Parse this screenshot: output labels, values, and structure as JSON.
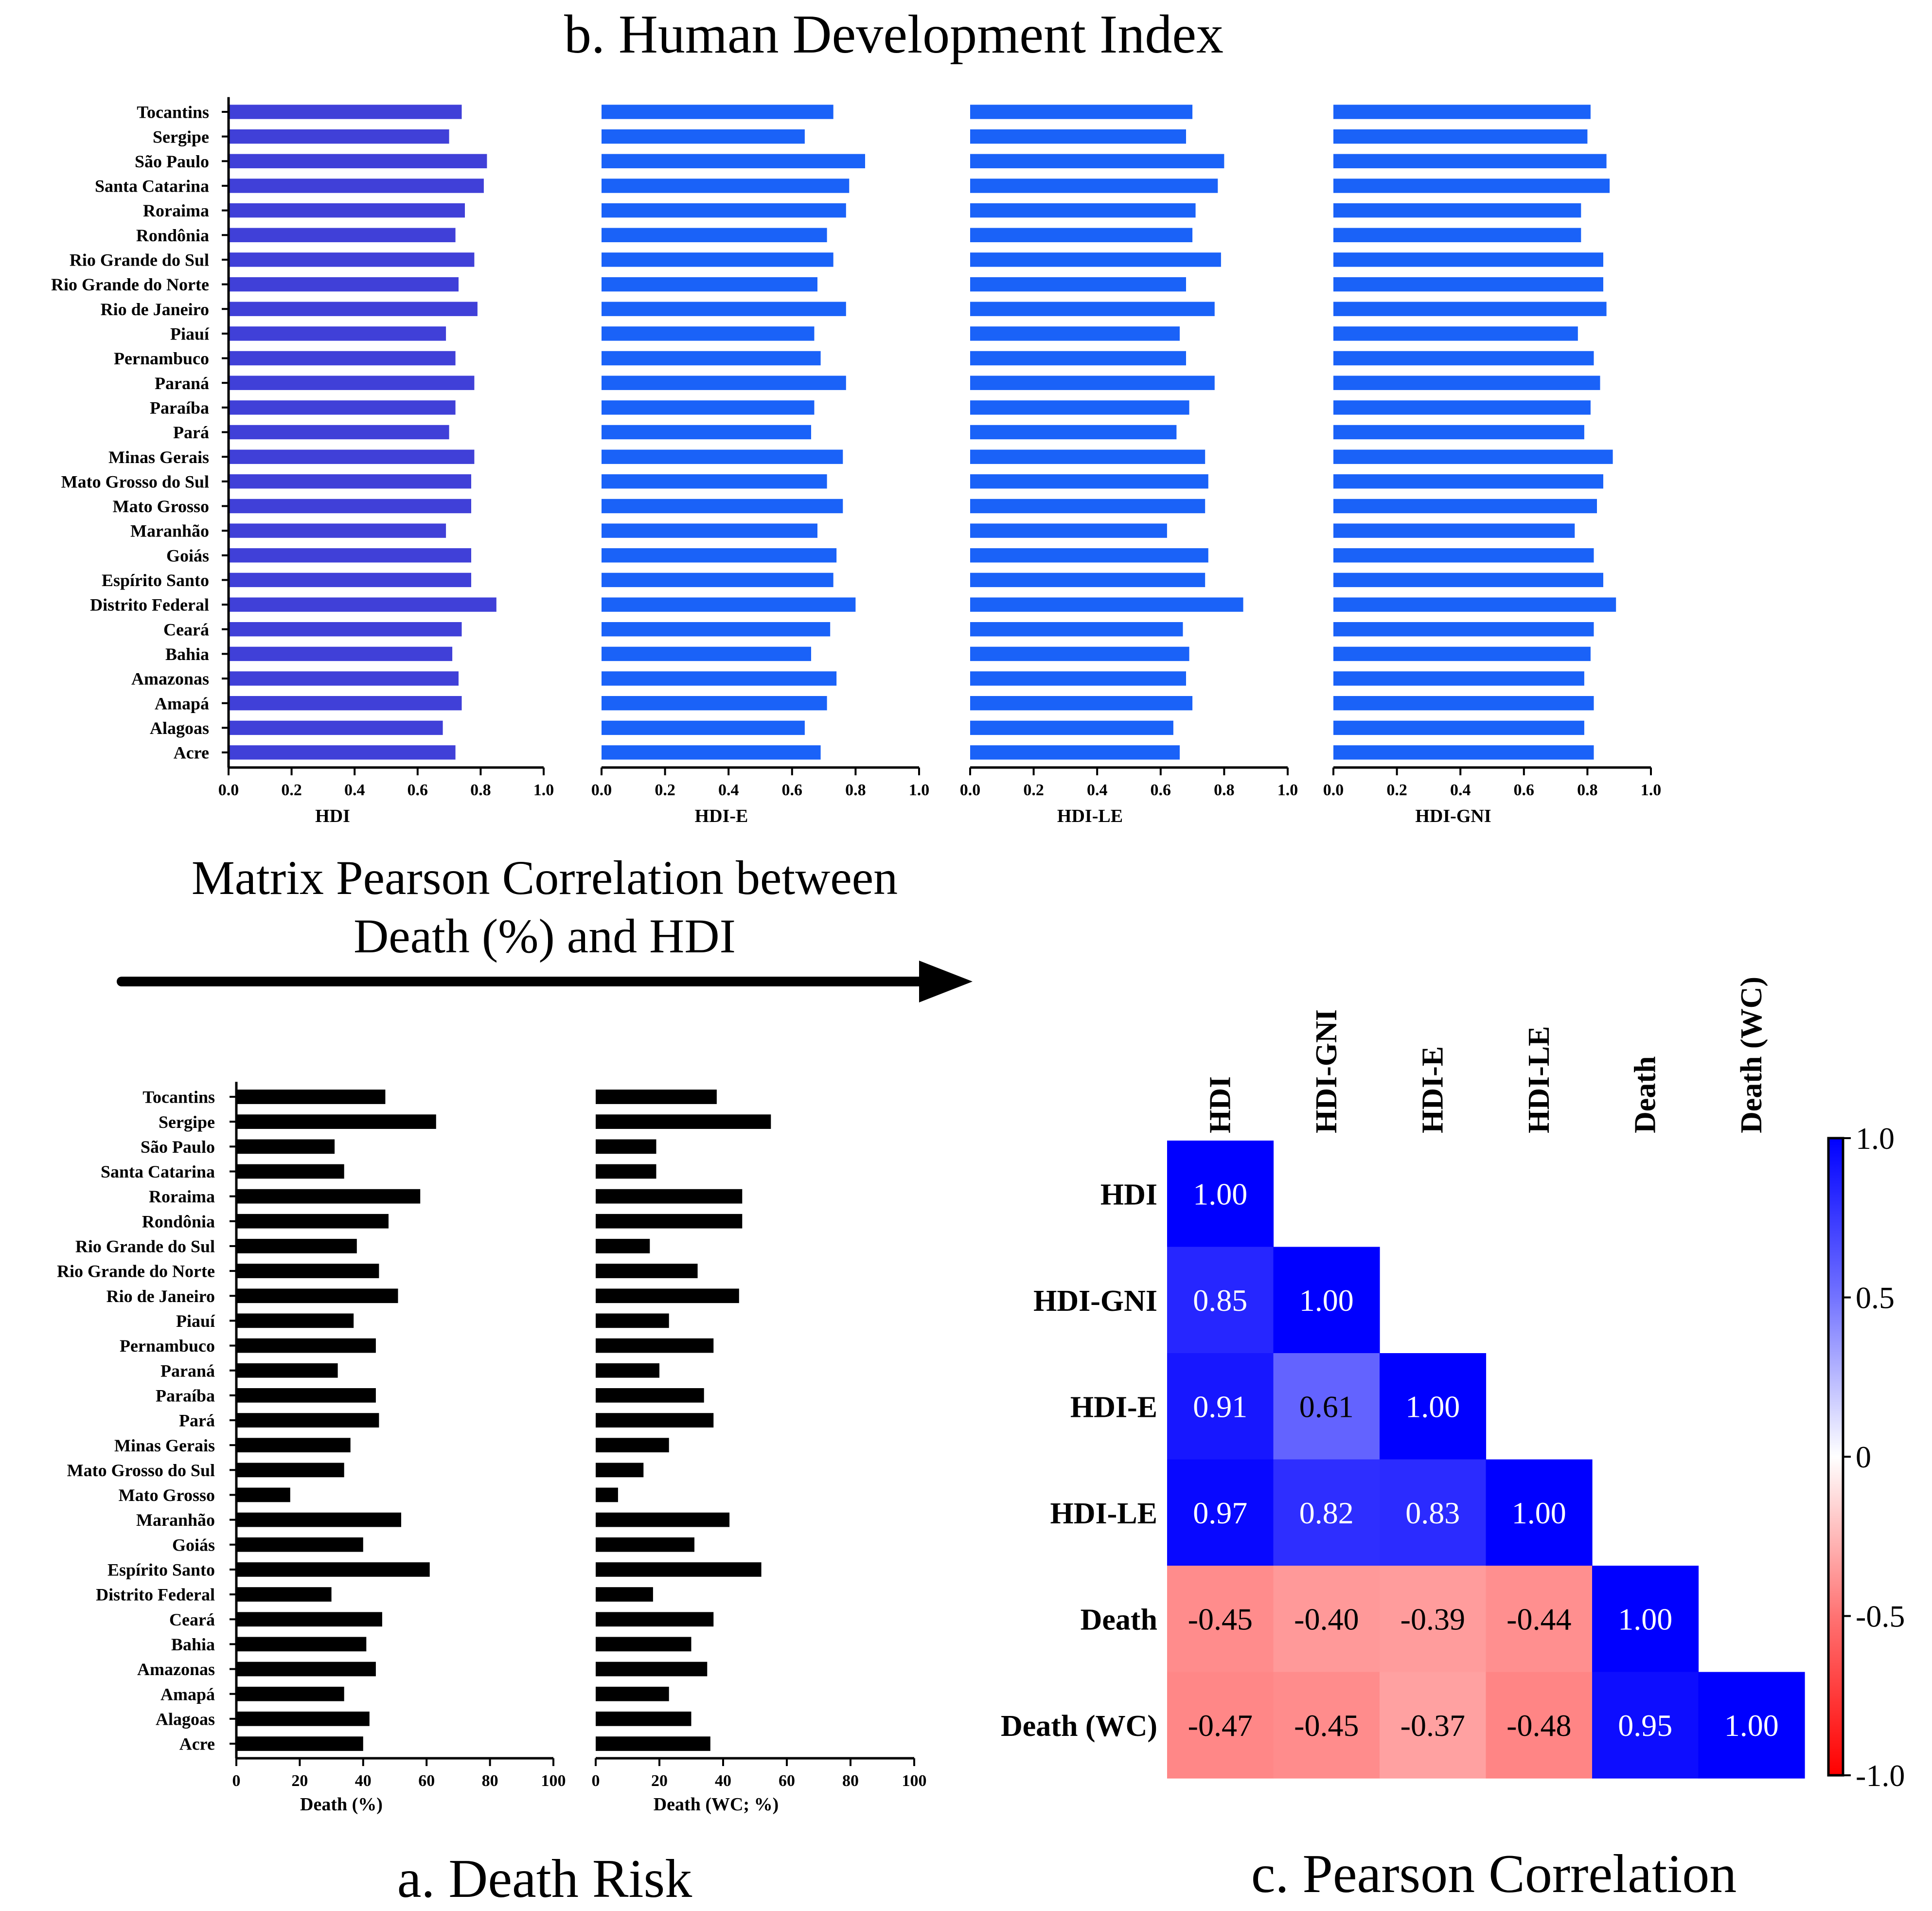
{
  "titles": {
    "top": "b. Human Development Index",
    "middle_line1": "Matrix Pearson Correlation between",
    "middle_line2": "Death (%) and HDI",
    "bottom_left": "a. Death Risk",
    "bottom_right": "c. Pearson Correlation"
  },
  "colors": {
    "hdi_bar": "#4040D8",
    "hdi_component_bar": "#1A62F8",
    "death_bar": "#000000",
    "heat_positive": "#0000FF",
    "heat_negative": "#FF0000"
  },
  "chart_data": [
    {
      "type": "bar",
      "orientation": "horizontal",
      "panel": "b",
      "xlabel": "HDI",
      "xlim": [
        0,
        1.0
      ],
      "xticks": [
        "0.0",
        "0.2",
        "0.4",
        "0.6",
        "0.8",
        "1.0"
      ],
      "categories": [
        "Tocantins",
        "Sergipe",
        "São Paulo",
        "Santa Catarina",
        "Roraima",
        "Rondônia",
        "Rio Grande do Sul",
        "Rio Grande do Norte",
        "Rio de Janeiro",
        "Piauí",
        "Pernambuco",
        "Paraná",
        "Paraíba",
        "Pará",
        "Minas Gerais",
        "Mato Grosso do Sul",
        "Mato Grosso",
        "Maranhão",
        "Goiás",
        "Espírito Santo",
        "Distrito Federal",
        "Ceará",
        "Bahia",
        "Amazonas",
        "Amapá",
        "Alagoas",
        "Acre"
      ],
      "values": [
        0.74,
        0.7,
        0.82,
        0.81,
        0.75,
        0.72,
        0.78,
        0.73,
        0.79,
        0.69,
        0.72,
        0.78,
        0.72,
        0.7,
        0.78,
        0.77,
        0.77,
        0.69,
        0.77,
        0.77,
        0.85,
        0.74,
        0.71,
        0.73,
        0.74,
        0.68,
        0.72
      ]
    },
    {
      "type": "bar",
      "orientation": "horizontal",
      "panel": "b",
      "xlabel": "HDI-E",
      "xlim": [
        0,
        1.0
      ],
      "xticks": [
        "0.0",
        "0.2",
        "0.4",
        "0.6",
        "0.8",
        "1.0"
      ],
      "categories": [
        "Tocantins",
        "Sergipe",
        "São Paulo",
        "Santa Catarina",
        "Roraima",
        "Rondônia",
        "Rio Grande do Sul",
        "Rio Grande do Norte",
        "Rio de Janeiro",
        "Piauí",
        "Pernambuco",
        "Paraná",
        "Paraíba",
        "Pará",
        "Minas Gerais",
        "Mato Grosso do Sul",
        "Mato Grosso",
        "Maranhão",
        "Goiás",
        "Espírito Santo",
        "Distrito Federal",
        "Ceará",
        "Bahia",
        "Amazonas",
        "Amapá",
        "Alagoas",
        "Acre"
      ],
      "values": [
        0.73,
        0.64,
        0.83,
        0.78,
        0.77,
        0.71,
        0.73,
        0.68,
        0.77,
        0.67,
        0.69,
        0.77,
        0.67,
        0.66,
        0.76,
        0.71,
        0.76,
        0.68,
        0.74,
        0.73,
        0.8,
        0.72,
        0.66,
        0.74,
        0.71,
        0.64,
        0.69
      ]
    },
    {
      "type": "bar",
      "orientation": "horizontal",
      "panel": "b",
      "xlabel": "HDI-LE",
      "xlim": [
        0,
        1.0
      ],
      "xticks": [
        "0.0",
        "0.2",
        "0.4",
        "0.6",
        "0.8",
        "1.0"
      ],
      "categories": [
        "Tocantins",
        "Sergipe",
        "São Paulo",
        "Santa Catarina",
        "Roraima",
        "Rondônia",
        "Rio Grande do Sul",
        "Rio Grande do Norte",
        "Rio de Janeiro",
        "Piauí",
        "Pernambuco",
        "Paraná",
        "Paraíba",
        "Pará",
        "Minas Gerais",
        "Mato Grosso do Sul",
        "Mato Grosso",
        "Maranhão",
        "Goiás",
        "Espírito Santo",
        "Distrito Federal",
        "Ceará",
        "Bahia",
        "Amazonas",
        "Amapá",
        "Alagoas",
        "Acre"
      ],
      "values": [
        0.7,
        0.68,
        0.8,
        0.78,
        0.71,
        0.7,
        0.79,
        0.68,
        0.77,
        0.66,
        0.68,
        0.77,
        0.69,
        0.65,
        0.74,
        0.75,
        0.74,
        0.62,
        0.75,
        0.74,
        0.86,
        0.67,
        0.69,
        0.68,
        0.7,
        0.64,
        0.66
      ]
    },
    {
      "type": "bar",
      "orientation": "horizontal",
      "panel": "b",
      "xlabel": "HDI-GNI",
      "xlim": [
        0,
        1.0
      ],
      "xticks": [
        "0.0",
        "0.2",
        "0.4",
        "0.6",
        "0.8",
        "1.0"
      ],
      "categories": [
        "Tocantins",
        "Sergipe",
        "São Paulo",
        "Santa Catarina",
        "Roraima",
        "Rondônia",
        "Rio Grande do Sul",
        "Rio Grande do Norte",
        "Rio de Janeiro",
        "Piauí",
        "Pernambuco",
        "Paraná",
        "Paraíba",
        "Pará",
        "Minas Gerais",
        "Mato Grosso do Sul",
        "Mato Grosso",
        "Maranhão",
        "Goiás",
        "Espírito Santo",
        "Distrito Federal",
        "Ceará",
        "Bahia",
        "Amazonas",
        "Amapá",
        "Alagoas",
        "Acre"
      ],
      "values": [
        0.81,
        0.8,
        0.86,
        0.87,
        0.78,
        0.78,
        0.85,
        0.85,
        0.86,
        0.77,
        0.82,
        0.84,
        0.81,
        0.79,
        0.88,
        0.85,
        0.83,
        0.76,
        0.82,
        0.85,
        0.89,
        0.82,
        0.81,
        0.79,
        0.82,
        0.79,
        0.82
      ]
    },
    {
      "type": "bar",
      "orientation": "horizontal",
      "panel": "a",
      "xlabel": "Death (%)",
      "xlim": [
        0,
        100
      ],
      "xticks": [
        "0",
        "20",
        "40",
        "60",
        "80",
        "100"
      ],
      "categories": [
        "Tocantins",
        "Sergipe",
        "São Paulo",
        "Santa Catarina",
        "Roraima",
        "Rondônia",
        "Rio Grande do Sul",
        "Rio Grande do Norte",
        "Rio de Janeiro",
        "Piauí",
        "Pernambuco",
        "Paraná",
        "Paraíba",
        "Pará",
        "Minas Gerais",
        "Mato Grosso do Sul",
        "Mato Grosso",
        "Maranhão",
        "Goiás",
        "Espírito Santo",
        "Distrito Federal",
        "Ceará",
        "Bahia",
        "Amazonas",
        "Amapá",
        "Alagoas",
        "Acre"
      ],
      "values": [
        47,
        63,
        31,
        34,
        58,
        48,
        38,
        45,
        51,
        37,
        44,
        32,
        44,
        45,
        36,
        34,
        17,
        52,
        40,
        61,
        30,
        46,
        41,
        44,
        34,
        42,
        40
      ]
    },
    {
      "type": "bar",
      "orientation": "horizontal",
      "panel": "a",
      "xlabel": "Death (WC; %)",
      "xlim": [
        0,
        100
      ],
      "xticks": [
        "0",
        "20",
        "40",
        "60",
        "80",
        "100"
      ],
      "categories": [
        "Tocantins",
        "Sergipe",
        "São Paulo",
        "Santa Catarina",
        "Roraima",
        "Rondônia",
        "Rio Grande do Sul",
        "Rio Grande do Norte",
        "Rio de Janeiro",
        "Piauí",
        "Pernambuco",
        "Paraná",
        "Paraíba",
        "Pará",
        "Minas Gerais",
        "Mato Grosso do Sul",
        "Mato Grosso",
        "Maranhão",
        "Goiás",
        "Espírito Santo",
        "Distrito Federal",
        "Ceará",
        "Bahia",
        "Amazonas",
        "Amapá",
        "Alagoas",
        "Acre"
      ],
      "values": [
        38,
        55,
        19,
        19,
        46,
        46,
        17,
        32,
        45,
        23,
        37,
        20,
        34,
        37,
        23,
        15,
        7,
        42,
        31,
        52,
        18,
        37,
        30,
        35,
        23,
        30,
        36
      ]
    },
    {
      "type": "heatmap",
      "panel": "c",
      "title": "Pearson Correlation",
      "labels": [
        "HDI",
        "HDI-GNI",
        "HDI-E",
        "HDI-LE",
        "Death",
        "Death (WC)"
      ],
      "matrix": [
        [
          1.0,
          null,
          null,
          null,
          null,
          null
        ],
        [
          0.85,
          1.0,
          null,
          null,
          null,
          null
        ],
        [
          0.91,
          0.61,
          1.0,
          null,
          null,
          null
        ],
        [
          0.97,
          0.82,
          0.83,
          1.0,
          null,
          null
        ],
        [
          -0.45,
          -0.4,
          -0.39,
          -0.44,
          1.0,
          null
        ],
        [
          -0.47,
          -0.45,
          -0.37,
          -0.48,
          0.95,
          1.0
        ]
      ],
      "colorbar": {
        "min": -1.0,
        "max": 1.0,
        "ticks": [
          "1.0",
          "0.5",
          "0",
          "-0.5",
          "-1.0"
        ]
      }
    }
  ]
}
